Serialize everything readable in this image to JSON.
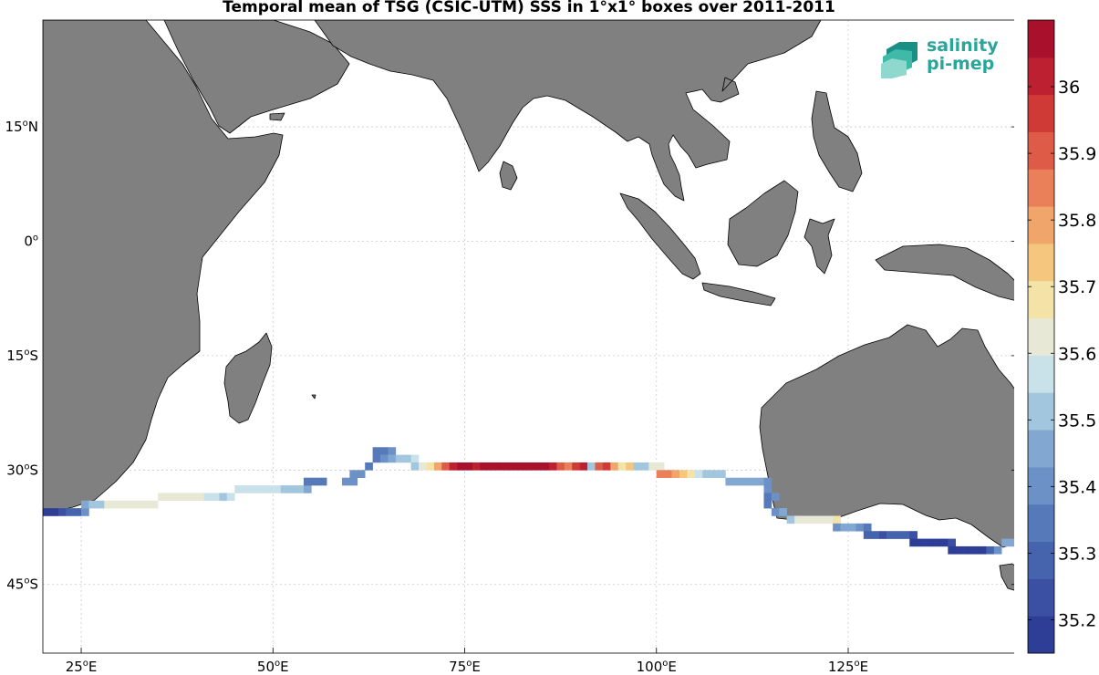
{
  "title": "Temporal mean of TSG (CSIC-UTM) SSS in 1°x1° boxes over 2011-2011",
  "logo": {
    "line1": "salinity",
    "line2": "pi-mep"
  },
  "map": {
    "lon_range": [
      20,
      147
    ],
    "lat_range": [
      -54,
      29
    ],
    "lat_ticks": [
      {
        "value": 15,
        "label": "15°N"
      },
      {
        "value": 0,
        "label": "0°"
      },
      {
        "value": -15,
        "label": "15°S"
      },
      {
        "value": -30,
        "label": "30°S"
      },
      {
        "value": -45,
        "label": "45°S"
      }
    ],
    "lon_ticks": [
      {
        "value": 25,
        "label": "25°E"
      },
      {
        "value": 50,
        "label": "50°E"
      },
      {
        "value": 75,
        "label": "75°E"
      },
      {
        "value": 100,
        "label": "100°E"
      },
      {
        "value": 125,
        "label": "125°E"
      }
    ],
    "grid": true,
    "land_color": "#808080",
    "ocean_color": "#ffffff"
  },
  "colorbar": {
    "range": [
      35.15,
      36.1
    ],
    "ticks": [
      {
        "value": 35.2,
        "label": "35.2"
      },
      {
        "value": 35.3,
        "label": "35.3"
      },
      {
        "value": 35.4,
        "label": "35.4"
      },
      {
        "value": 35.5,
        "label": "35.5"
      },
      {
        "value": 35.6,
        "label": "35.6"
      },
      {
        "value": 35.7,
        "label": "35.7"
      },
      {
        "value": 35.8,
        "label": "35.8"
      },
      {
        "value": 35.9,
        "label": "35.9"
      },
      {
        "value": 36.0,
        "label": "36"
      }
    ],
    "colors": [
      "#2e3d96",
      "#3b50a3",
      "#4664ae",
      "#5579b9",
      "#6b91c6",
      "#82a8d2",
      "#a3c6df",
      "#c9e2ea",
      "#e7e8d6",
      "#f4e3a7",
      "#f4c67e",
      "#f0a56b",
      "#e9805a",
      "#de5b47",
      "#cf3a36",
      "#bd2030",
      "#a8102c"
    ]
  },
  "chart_data": {
    "type": "heatmap",
    "title": "Temporal mean of TSG (CSIC-UTM) SSS in 1°x1° boxes over 2011-2011",
    "units": "°lon, °lat, SSS",
    "cells": [
      [
        20.5,
        -35.5,
        35.2
      ],
      [
        21.5,
        -35.5,
        35.2
      ],
      [
        22.5,
        -35.5,
        35.25
      ],
      [
        23.5,
        -35.5,
        35.3
      ],
      [
        24.5,
        -35.5,
        35.3
      ],
      [
        25.5,
        -35.5,
        35.4
      ],
      [
        25.5,
        -34.5,
        35.45
      ],
      [
        26.5,
        -34.5,
        35.5
      ],
      [
        27.5,
        -34.5,
        35.5
      ],
      [
        28.5,
        -34.5,
        35.6
      ],
      [
        29.5,
        -34.5,
        35.6
      ],
      [
        30.5,
        -34.5,
        35.6
      ],
      [
        31.5,
        -34.5,
        35.6
      ],
      [
        32.5,
        -34.5,
        35.6
      ],
      [
        33.5,
        -34.5,
        35.63
      ],
      [
        34.5,
        -34.5,
        35.63
      ],
      [
        35.5,
        -33.5,
        35.65
      ],
      [
        36.5,
        -33.5,
        35.65
      ],
      [
        37.5,
        -33.5,
        35.65
      ],
      [
        38.5,
        -33.5,
        35.65
      ],
      [
        39.5,
        -33.5,
        35.63
      ],
      [
        40.5,
        -33.5,
        35.6
      ],
      [
        41.5,
        -33.5,
        35.55
      ],
      [
        42.5,
        -33.5,
        35.55
      ],
      [
        43.5,
        -33.5,
        35.5
      ],
      [
        44.5,
        -33.5,
        35.55
      ],
      [
        45.5,
        -32.5,
        35.55
      ],
      [
        46.5,
        -32.5,
        35.55
      ],
      [
        47.5,
        -32.5,
        35.55
      ],
      [
        48.5,
        -32.5,
        35.55
      ],
      [
        49.5,
        -32.5,
        35.55
      ],
      [
        50.5,
        -32.5,
        35.55
      ],
      [
        51.5,
        -32.5,
        35.5
      ],
      [
        52.5,
        -32.5,
        35.5
      ],
      [
        53.5,
        -32.5,
        35.5
      ],
      [
        54.5,
        -32.5,
        35.45
      ],
      [
        54.5,
        -31.5,
        35.35
      ],
      [
        55.5,
        -31.5,
        35.35
      ],
      [
        56.5,
        -31.5,
        35.35
      ],
      [
        59.5,
        -31.5,
        35.4
      ],
      [
        60.5,
        -31.5,
        35.4
      ],
      [
        60.5,
        -30.5,
        35.4
      ],
      [
        61.5,
        -30.5,
        35.4
      ],
      [
        62.5,
        -29.5,
        35.35
      ],
      [
        63.5,
        -28.5,
        35.35
      ],
      [
        63.5,
        -27.5,
        35.35
      ],
      [
        64.5,
        -27.5,
        35.35
      ],
      [
        65.5,
        -27.5,
        35.4
      ],
      [
        64.5,
        -28.5,
        35.4
      ],
      [
        65.5,
        -28.5,
        35.45
      ],
      [
        66.5,
        -28.5,
        35.5
      ],
      [
        67.5,
        -28.5,
        35.5
      ],
      [
        68.5,
        -28.5,
        35.55
      ],
      [
        68.5,
        -29.5,
        35.5
      ],
      [
        69.5,
        -29.5,
        35.6
      ],
      [
        70.5,
        -29.5,
        35.7
      ],
      [
        71.5,
        -29.5,
        35.8
      ],
      [
        72.5,
        -29.5,
        35.9
      ],
      [
        73.5,
        -29.5,
        36.0
      ],
      [
        74.5,
        -29.5,
        36.05
      ],
      [
        75.5,
        -29.5,
        36.05
      ],
      [
        76.5,
        -29.5,
        36.0
      ],
      [
        77.5,
        -29.5,
        36.05
      ],
      [
        78.5,
        -29.5,
        36.05
      ],
      [
        79.5,
        -29.5,
        36.05
      ],
      [
        80.5,
        -29.5,
        36.1
      ],
      [
        81.5,
        -29.5,
        36.1
      ],
      [
        82.5,
        -29.5,
        36.1
      ],
      [
        83.5,
        -29.5,
        36.05
      ],
      [
        84.5,
        -29.5,
        36.05
      ],
      [
        85.5,
        -29.5,
        36.05
      ],
      [
        86.5,
        -29.5,
        36.0
      ],
      [
        87.5,
        -29.5,
        35.9
      ],
      [
        88.5,
        -29.5,
        35.85
      ],
      [
        89.5,
        -29.5,
        35.95
      ],
      [
        90.5,
        -29.5,
        36.0
      ],
      [
        91.5,
        -29.5,
        35.5
      ],
      [
        92.5,
        -29.5,
        35.9
      ],
      [
        93.5,
        -29.5,
        35.95
      ],
      [
        94.5,
        -29.5,
        35.8
      ],
      [
        95.5,
        -29.5,
        35.7
      ],
      [
        96.5,
        -29.5,
        35.75
      ],
      [
        97.5,
        -29.5,
        35.5
      ],
      [
        98.5,
        -29.5,
        35.5
      ],
      [
        99.5,
        -29.5,
        35.6
      ],
      [
        100.5,
        -29.5,
        35.65
      ],
      [
        100.5,
        -30.5,
        35.85
      ],
      [
        101.5,
        -30.5,
        35.85
      ],
      [
        102.5,
        -30.5,
        35.8
      ],
      [
        103.5,
        -30.5,
        35.75
      ],
      [
        104.5,
        -30.5,
        35.7
      ],
      [
        105.5,
        -30.5,
        35.55
      ],
      [
        106.5,
        -30.5,
        35.5
      ],
      [
        107.5,
        -30.5,
        35.5
      ],
      [
        108.5,
        -30.5,
        35.5
      ],
      [
        109.5,
        -31.5,
        35.45
      ],
      [
        110.5,
        -31.5,
        35.45
      ],
      [
        111.5,
        -31.5,
        35.45
      ],
      [
        112.5,
        -31.5,
        35.45
      ],
      [
        113.5,
        -31.5,
        35.45
      ],
      [
        114.5,
        -31.5,
        35.4
      ],
      [
        114.5,
        -32.5,
        35.4
      ],
      [
        114.5,
        -33.5,
        35.35
      ],
      [
        115.5,
        -33.5,
        35.4
      ],
      [
        114.5,
        -34.5,
        35.35
      ],
      [
        115.5,
        -35.5,
        35.4
      ],
      [
        116.5,
        -35.5,
        35.45
      ],
      [
        117.5,
        -36.5,
        35.5
      ],
      [
        118.5,
        -36.5,
        35.6
      ],
      [
        119.5,
        -36.5,
        35.6
      ],
      [
        120.5,
        -36.5,
        35.6
      ],
      [
        121.5,
        -36.5,
        35.6
      ],
      [
        122.5,
        -36.5,
        35.65
      ],
      [
        123.5,
        -36.5,
        35.7
      ],
      [
        123.5,
        -37.5,
        35.4
      ],
      [
        124.5,
        -37.5,
        35.45
      ],
      [
        125.5,
        -37.5,
        35.45
      ],
      [
        126.5,
        -37.5,
        35.4
      ],
      [
        127.5,
        -37.5,
        35.35
      ],
      [
        127.5,
        -38.5,
        35.3
      ],
      [
        128.5,
        -38.5,
        35.3
      ],
      [
        129.5,
        -38.5,
        35.25
      ],
      [
        130.5,
        -38.5,
        35.3
      ],
      [
        131.5,
        -38.5,
        35.3
      ],
      [
        132.5,
        -38.5,
        35.3
      ],
      [
        133.5,
        -38.5,
        35.25
      ],
      [
        133.5,
        -39.5,
        35.2
      ],
      [
        134.5,
        -39.5,
        35.2
      ],
      [
        135.5,
        -39.5,
        35.2
      ],
      [
        136.5,
        -39.5,
        35.2
      ],
      [
        137.5,
        -39.5,
        35.2
      ],
      [
        138.5,
        -39.5,
        35.25
      ],
      [
        138.5,
        -40.5,
        35.2
      ],
      [
        139.5,
        -40.5,
        35.2
      ],
      [
        140.5,
        -40.5,
        35.2
      ],
      [
        141.5,
        -40.5,
        35.2
      ],
      [
        142.5,
        -40.5,
        35.2
      ],
      [
        143.5,
        -40.5,
        35.3
      ],
      [
        144.5,
        -40.5,
        35.4
      ],
      [
        145.5,
        -39.5,
        35.45
      ],
      [
        146.5,
        -39.5,
        35.45
      ]
    ]
  }
}
